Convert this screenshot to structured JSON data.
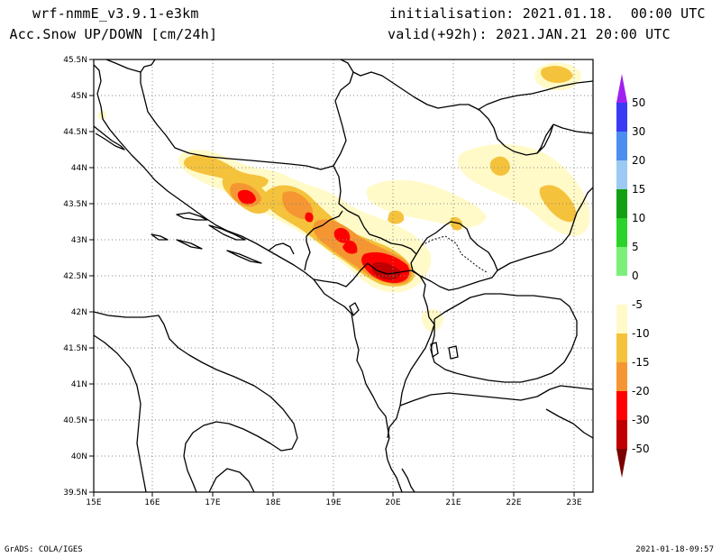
{
  "header": {
    "model": "wrf-nmmE_v3.9.1-e3km",
    "variable": "n Acc.Snow UP/DOWN [cm/24h]",
    "init": "initialisation: 2021.01.18.  00:00 UTC",
    "valid": "valid(+92h): 2021.JAN.21 20:00 UTC"
  },
  "footer": {
    "left": "GrADS: COLA/IGES",
    "right": "2021-01-18-09:57"
  },
  "axes": {
    "lon_labels": [
      "15E",
      "16E",
      "17E",
      "18E",
      "19E",
      "20E",
      "21E",
      "22E",
      "23E"
    ],
    "lat_labels": [
      "45.5N",
      "45N",
      "44.5N",
      "44N",
      "43.5N",
      "43N",
      "42.5N",
      "42N",
      "41.5N",
      "41N",
      "40.5N",
      "40N",
      "39.5N"
    ]
  },
  "colorbar": {
    "labels": [
      "50",
      "30",
      "20",
      "15",
      "10",
      "5",
      "0",
      "-5",
      "-10",
      "-15",
      "-20",
      "-30",
      "-50"
    ],
    "colors": {
      "top_arrow": "#a020f0",
      "c50_30": "#3a3af5",
      "c30_20": "#4c8ef0",
      "c20_15": "#9ccaf5",
      "c15_10": "#12a012",
      "c10_5": "#2ad22a",
      "c5_0": "#7af07a",
      "c0_m5": "#ffffff",
      "m5_m10": "#fffac8",
      "m10_m15": "#f5c23c",
      "m15_m20": "#f59632",
      "m20_m30": "#ff0000",
      "m30_m50": "#c00000",
      "bottom_arrow": "#7a0000"
    }
  }
}
